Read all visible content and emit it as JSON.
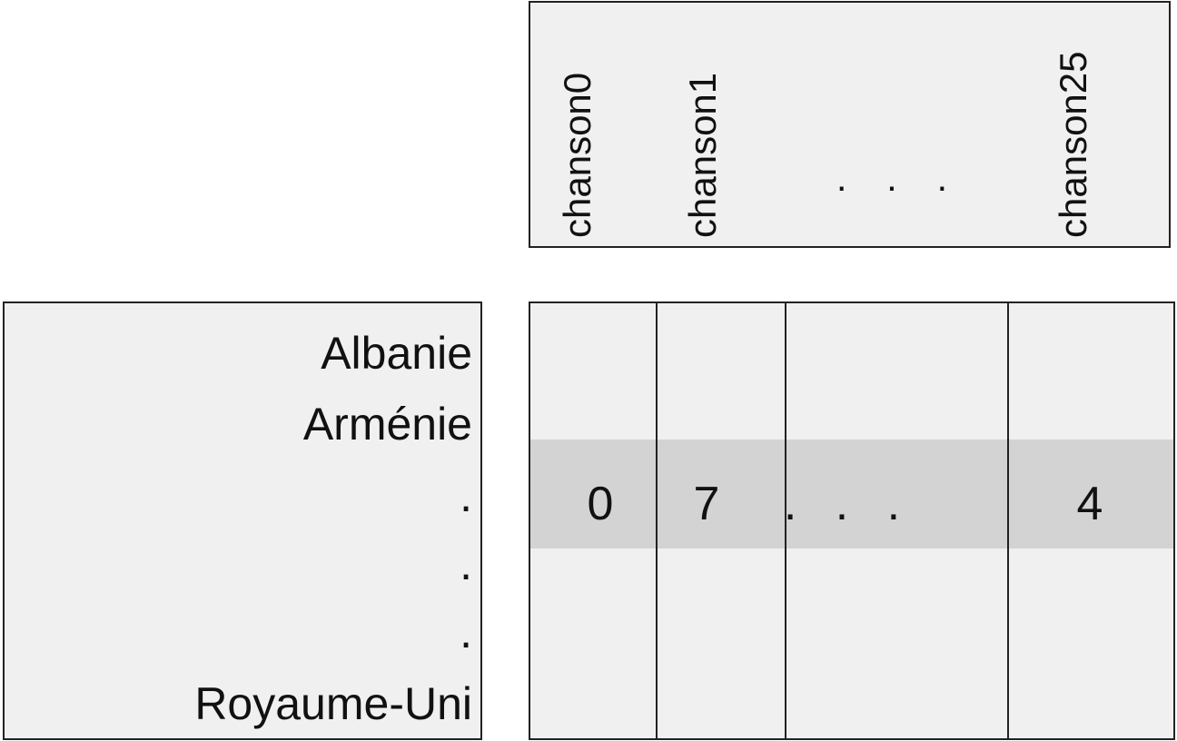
{
  "header": {
    "columns": [
      "chanson0",
      "chanson1",
      ". . .",
      "chanson25"
    ]
  },
  "rows": {
    "labels": [
      "Albanie",
      "Arménie",
      ".",
      ".",
      ".",
      "Royaume-Uni"
    ]
  },
  "table": {
    "highlighted_row": [
      0,
      7,
      ". . .",
      4
    ]
  }
}
